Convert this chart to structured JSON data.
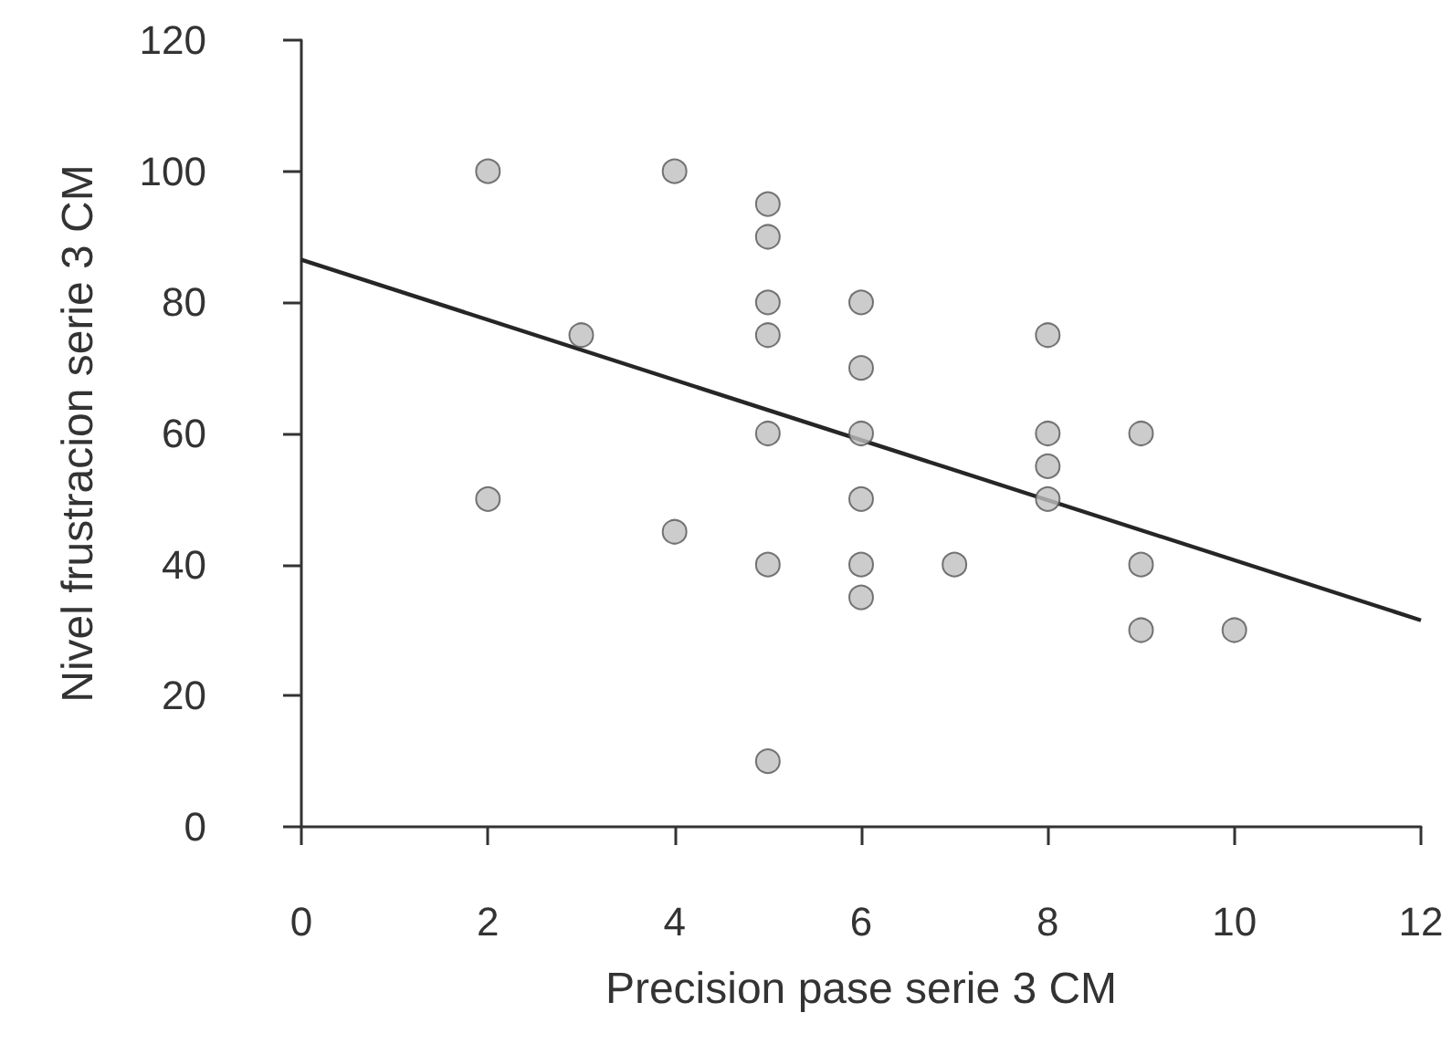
{
  "chart_data": {
    "type": "scatter",
    "xlabel": "Precision pase serie 3 CM",
    "ylabel": "Nivel frustracion serie 3 CM",
    "x": [
      2,
      2,
      3,
      4,
      4,
      5,
      5,
      5,
      5,
      5,
      5,
      5,
      6,
      6,
      6,
      6,
      6,
      6,
      7,
      8,
      8,
      8,
      8,
      9,
      9,
      9,
      10
    ],
    "series": [
      {
        "color": "#bfbfbf",
        "values": [
          100,
          50,
          75,
          100,
          45,
          95,
          90,
          80,
          75,
          60,
          40,
          10,
          80,
          70,
          60,
          50,
          40,
          35,
          40,
          75,
          60,
          55,
          50,
          60,
          40,
          30,
          30
        ]
      },
      {
        "type": "line",
        "color": "#262626",
        "x": [
          0,
          12
        ],
        "values": [
          86.5,
          31.5
        ],
        "marker": "none"
      }
    ],
    "xlim": [
      0,
      12
    ],
    "xticks": [
      0,
      2,
      4,
      6,
      8,
      10,
      12
    ],
    "ylim": [
      0,
      120
    ],
    "yticks": [
      0,
      20,
      40,
      60,
      80,
      100,
      120
    ],
    "marker": "circle"
  }
}
